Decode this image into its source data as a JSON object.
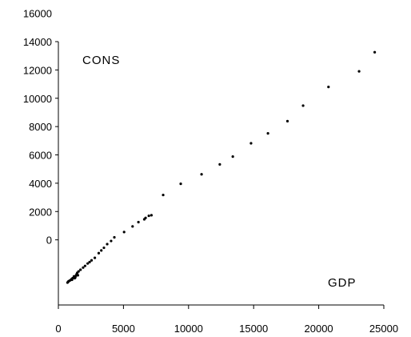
{
  "chart_data": {
    "type": "scatter",
    "title": "",
    "xlabel": "GDP",
    "ylabel": "CONS",
    "x_ticks": [
      "0",
      "5000",
      "10000",
      "15000",
      "20000",
      "25000"
    ],
    "y_ticks": [
      "0",
      "2000",
      "4000",
      "6000",
      "8000",
      "10000",
      "12000",
      "14000",
      "16000"
    ],
    "xlim": [
      0,
      25000
    ],
    "ylim": [
      -4600,
      14000
    ],
    "grid": false,
    "legend": "none",
    "marker_color": "#000000",
    "points": [
      [
        24300,
        13250
      ],
      [
        23100,
        11900
      ],
      [
        20750,
        10800
      ],
      [
        18800,
        9480
      ],
      [
        17600,
        8380
      ],
      [
        16100,
        7520
      ],
      [
        14800,
        6820
      ],
      [
        13400,
        5880
      ],
      [
        12400,
        5330
      ],
      [
        11000,
        4630
      ],
      [
        9400,
        3960
      ],
      [
        8050,
        3170
      ],
      [
        7150,
        1740
      ],
      [
        6950,
        1700
      ],
      [
        6700,
        1550
      ],
      [
        6600,
        1450
      ],
      [
        6150,
        1250
      ],
      [
        5700,
        950
      ],
      [
        5050,
        550
      ],
      [
        4300,
        180
      ],
      [
        4050,
        -80
      ],
      [
        3750,
        -300
      ],
      [
        3500,
        -560
      ],
      [
        3300,
        -750
      ],
      [
        3100,
        -940
      ],
      [
        2800,
        -1270
      ],
      [
        2550,
        -1450
      ],
      [
        2400,
        -1570
      ],
      [
        2250,
        -1670
      ],
      [
        2050,
        -1840
      ],
      [
        1900,
        -1960
      ],
      [
        1700,
        -2110
      ],
      [
        1550,
        -2230
      ],
      [
        1450,
        -2330
      ],
      [
        1400,
        -2430
      ],
      [
        1350,
        -2530
      ],
      [
        1200,
        -2580
      ],
      [
        1300,
        -2660
      ],
      [
        1100,
        -2700
      ],
      [
        1000,
        -2780
      ],
      [
        900,
        -2860
      ],
      [
        800,
        -2920
      ],
      [
        700,
        -3020
      ],
      [
        750,
        -2960
      ],
      [
        1050,
        -2820
      ],
      [
        1250,
        -2710
      ],
      [
        1500,
        -2500
      ]
    ]
  }
}
